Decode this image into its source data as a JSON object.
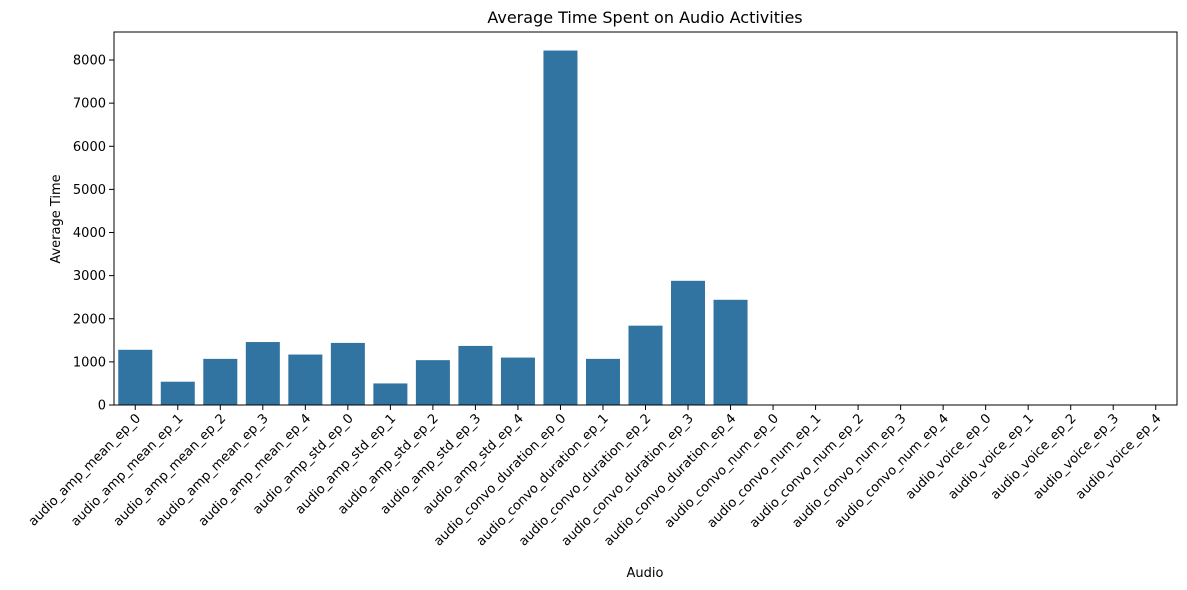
{
  "chart_data": {
    "type": "bar",
    "title": "Average Time Spent on Audio Activities",
    "xlabel": "Audio",
    "ylabel": "Average Time",
    "ylim": [
      0,
      8650
    ],
    "yticks": [
      0,
      1000,
      2000,
      3000,
      4000,
      5000,
      6000,
      7000,
      8000
    ],
    "grid": false,
    "color": "#3274a1",
    "categories": [
      "audio_amp_mean_ep_0",
      "audio_amp_mean_ep_1",
      "audio_amp_mean_ep_2",
      "audio_amp_mean_ep_3",
      "audio_amp_mean_ep_4",
      "audio_amp_std_ep_0",
      "audio_amp_std_ep_1",
      "audio_amp_std_ep_2",
      "audio_amp_std_ep_3",
      "audio_amp_std_ep_4",
      "audio_convo_duration_ep_0",
      "audio_convo_duration_ep_1",
      "audio_convo_duration_ep_2",
      "audio_convo_duration_ep_3",
      "audio_convo_duration_ep_4",
      "audio_convo_num_ep_0",
      "audio_convo_num_ep_1",
      "audio_convo_num_ep_2",
      "audio_convo_num_ep_3",
      "audio_convo_num_ep_4",
      "audio_voice_ep_0",
      "audio_voice_ep_1",
      "audio_voice_ep_2",
      "audio_voice_ep_3",
      "audio_voice_ep_4"
    ],
    "values": [
      1280,
      540,
      1070,
      1460,
      1170,
      1440,
      500,
      1040,
      1370,
      1100,
      8220,
      1070,
      1840,
      2880,
      2440,
      1,
      1,
      1,
      1,
      1,
      1,
      1,
      1,
      1,
      1
    ]
  }
}
